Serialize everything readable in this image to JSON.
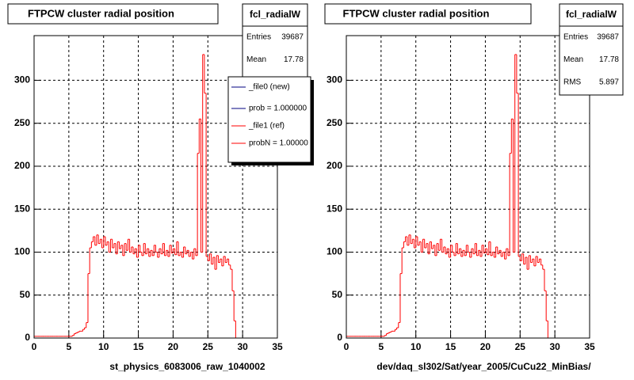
{
  "chart_data": [
    {
      "type": "histogram",
      "title": "FTPCW cluster radial position",
      "x_label": "st_physics_6083006_raw_1040002",
      "color": "#ff0000",
      "bins": [
        0,
        0.25,
        0.5,
        0.75,
        1,
        1.25,
        1.5,
        1.75,
        2,
        2.25,
        2.5,
        2.75,
        3,
        3.25,
        3.5,
        3.75,
        4,
        4.25,
        4.5,
        4.75,
        5,
        5.25,
        5.5,
        5.75,
        6,
        6.25,
        6.5,
        6.75,
        7,
        7.25,
        7.5,
        7.75,
        8,
        8.25,
        8.5,
        8.75,
        9,
        9.25,
        9.5,
        9.75,
        10,
        10.25,
        10.5,
        10.75,
        11,
        11.25,
        11.5,
        11.75,
        12,
        12.25,
        12.5,
        12.75,
        13,
        13.25,
        13.5,
        13.75,
        14,
        14.25,
        14.5,
        14.75,
        15,
        15.25,
        15.5,
        15.75,
        16,
        16.25,
        16.5,
        16.75,
        17,
        17.25,
        17.5,
        17.75,
        18,
        18.25,
        18.5,
        18.75,
        19,
        19.25,
        19.5,
        19.75,
        20,
        20.25,
        20.5,
        20.75,
        21,
        21.25,
        21.5,
        21.75,
        22,
        22.25,
        22.5,
        22.75,
        23,
        23.25,
        23.5,
        23.75,
        24,
        24.25,
        24.5,
        24.75,
        25,
        25.25,
        25.5,
        25.75,
        26,
        26.25,
        26.5,
        26.75,
        27,
        27.25,
        27.5,
        27.75,
        28,
        28.25,
        28.5,
        28.75,
        29,
        29.25,
        29.5,
        29.75,
        30,
        30.25,
        30.5,
        30.75,
        31,
        31.25,
        31.5,
        31.75,
        32,
        32.25,
        32.5,
        32.75,
        33,
        33.25,
        33.5,
        33.75,
        34,
        34.25,
        34.5,
        34.75,
        35
      ],
      "values": [
        2,
        2,
        2,
        2,
        2,
        2,
        2,
        2,
        2,
        2,
        2,
        2,
        2,
        2,
        2,
        2,
        2,
        2,
        2,
        2,
        2,
        2,
        3,
        5,
        6,
        7,
        8,
        8,
        10,
        12,
        18,
        75,
        105,
        112,
        118,
        108,
        120,
        110,
        115,
        105,
        118,
        108,
        112,
        100,
        115,
        105,
        110,
        98,
        112,
        104,
        108,
        96,
        110,
        102,
        115,
        100,
        106,
        98,
        104,
        94,
        108,
        100,
        96,
        110,
        98,
        104,
        95,
        102,
        96,
        108,
        100,
        94,
        104,
        98,
        110,
        96,
        102,
        95,
        108,
        99,
        104,
        97,
        112,
        96,
        100,
        94,
        106,
        98,
        102,
        95,
        100,
        92,
        104,
        96,
        215,
        255,
        100,
        330,
        285,
        95,
        90,
        98,
        86,
        94,
        80,
        96,
        88,
        92,
        84,
        95,
        88,
        92,
        85,
        80,
        55,
        20,
        0,
        0,
        0,
        0,
        0,
        0,
        0,
        0,
        0,
        0,
        0,
        0,
        0,
        0,
        0,
        0,
        0,
        0,
        0,
        0,
        0,
        0,
        0,
        0
      ],
      "xlim": [
        0,
        35
      ],
      "xticks": [
        0,
        5,
        10,
        15,
        20,
        25,
        30,
        35
      ],
      "ylim": [
        0,
        352
      ],
      "yticks": [
        0,
        50,
        100,
        150,
        200,
        250,
        300
      ],
      "grid": true,
      "stats": {
        "title": "fcl_radialW",
        "rows": [
          {
            "label": "Entries",
            "value": 39687
          },
          {
            "label": "Mean",
            "value": 17.78
          }
        ]
      },
      "legend": [
        {
          "label": "_file0 (new)",
          "color": "#000080"
        },
        {
          "label": "prob = 1.000000",
          "color": "#000080"
        },
        {
          "label": "_file1 (ref)",
          "color": "#ff0000"
        },
        {
          "label": "probN = 1.00000",
          "color": "#ff0000"
        }
      ]
    },
    {
      "type": "histogram",
      "title": "FTPCW cluster radial position",
      "x_label": "dev/daq_sl302/Sat/year_2005/CuCu22_MinBias/",
      "color": "#ff0000",
      "bins": [
        0,
        0.25,
        0.5,
        0.75,
        1,
        1.25,
        1.5,
        1.75,
        2,
        2.25,
        2.5,
        2.75,
        3,
        3.25,
        3.5,
        3.75,
        4,
        4.25,
        4.5,
        4.75,
        5,
        5.25,
        5.5,
        5.75,
        6,
        6.25,
        6.5,
        6.75,
        7,
        7.25,
        7.5,
        7.75,
        8,
        8.25,
        8.5,
        8.75,
        9,
        9.25,
        9.5,
        9.75,
        10,
        10.25,
        10.5,
        10.75,
        11,
        11.25,
        11.5,
        11.75,
        12,
        12.25,
        12.5,
        12.75,
        13,
        13.25,
        13.5,
        13.75,
        14,
        14.25,
        14.5,
        14.75,
        15,
        15.25,
        15.5,
        15.75,
        16,
        16.25,
        16.5,
        16.75,
        17,
        17.25,
        17.5,
        17.75,
        18,
        18.25,
        18.5,
        18.75,
        19,
        19.25,
        19.5,
        19.75,
        20,
        20.25,
        20.5,
        20.75,
        21,
        21.25,
        21.5,
        21.75,
        22,
        22.25,
        22.5,
        22.75,
        23,
        23.25,
        23.5,
        23.75,
        24,
        24.25,
        24.5,
        24.75,
        25,
        25.25,
        25.5,
        25.75,
        26,
        26.25,
        26.5,
        26.75,
        27,
        27.25,
        27.5,
        27.75,
        28,
        28.25,
        28.5,
        28.75,
        29,
        29.25,
        29.5,
        29.75,
        30,
        30.25,
        30.5,
        30.75,
        31,
        31.25,
        31.5,
        31.75,
        32,
        32.25,
        32.5,
        32.75,
        33,
        33.25,
        33.5,
        33.75,
        34,
        34.25,
        34.5,
        34.75,
        35
      ],
      "values": [
        2,
        2,
        2,
        2,
        2,
        2,
        2,
        2,
        2,
        2,
        2,
        2,
        2,
        2,
        2,
        2,
        2,
        2,
        2,
        2,
        2,
        2,
        3,
        5,
        6,
        7,
        8,
        8,
        10,
        12,
        18,
        75,
        105,
        112,
        118,
        108,
        120,
        110,
        115,
        105,
        118,
        108,
        112,
        100,
        115,
        105,
        110,
        98,
        112,
        104,
        108,
        96,
        110,
        102,
        115,
        100,
        106,
        98,
        104,
        94,
        108,
        100,
        96,
        110,
        98,
        104,
        95,
        102,
        96,
        108,
        100,
        94,
        104,
        98,
        110,
        96,
        102,
        95,
        108,
        99,
        104,
        97,
        112,
        96,
        100,
        94,
        106,
        98,
        102,
        95,
        100,
        92,
        104,
        96,
        215,
        255,
        100,
        330,
        285,
        95,
        90,
        98,
        86,
        94,
        80,
        96,
        88,
        92,
        84,
        95,
        88,
        92,
        85,
        80,
        55,
        20,
        0,
        0,
        0,
        0,
        0,
        0,
        0,
        0,
        0,
        0,
        0,
        0,
        0,
        0,
        0,
        0,
        0,
        0,
        0,
        0,
        0,
        0,
        0,
        0
      ],
      "xlim": [
        0,
        35
      ],
      "xticks": [
        0,
        5,
        10,
        15,
        20,
        25,
        30,
        35
      ],
      "ylim": [
        0,
        352
      ],
      "yticks": [
        0,
        50,
        100,
        150,
        200,
        250,
        300
      ],
      "grid": true,
      "stats": {
        "title": "fcl_radialW",
        "rows": [
          {
            "label": "Entries",
            "value": 39687
          },
          {
            "label": "Mean",
            "value": 17.78
          },
          {
            "label": "RMS",
            "value": 5.897
          }
        ]
      }
    }
  ]
}
